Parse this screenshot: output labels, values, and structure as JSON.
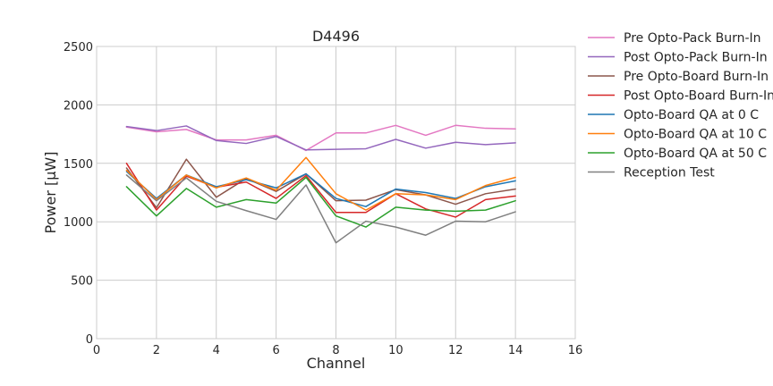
{
  "chart_data": {
    "type": "line",
    "title": "D4496",
    "xlabel": "Channel",
    "ylabel": "Power [μW]",
    "xlim": [
      0,
      16
    ],
    "ylim": [
      0,
      2500
    ],
    "xticks": [
      0,
      2,
      4,
      6,
      8,
      10,
      12,
      14,
      16
    ],
    "yticks": [
      0,
      500,
      1000,
      1500,
      2000,
      2500
    ],
    "grid": true,
    "legend_position": "outside-right",
    "x": [
      1,
      2,
      3,
      4,
      5,
      6,
      7,
      8,
      9,
      10,
      11,
      12,
      13,
      14
    ],
    "series": [
      {
        "name": "Pre Opto-Pack Burn-In",
        "color": "#e377c2",
        "values": [
          1810,
          1770,
          1790,
          1700,
          1700,
          1740,
          1610,
          1760,
          1760,
          1825,
          1740,
          1825,
          1800,
          1795
        ]
      },
      {
        "name": "Post Opto-Pack Burn-In",
        "color": "#9467bd",
        "values": [
          1815,
          1780,
          1820,
          1695,
          1670,
          1730,
          1615,
          1620,
          1625,
          1705,
          1630,
          1680,
          1660,
          1675
        ]
      },
      {
        "name": "Pre Opto-Board Burn-In",
        "color": "#8c564b",
        "values": [
          1460,
          1120,
          1535,
          1210,
          1370,
          1260,
          1410,
          1180,
          1185,
          1275,
          1230,
          1150,
          1240,
          1280
        ]
      },
      {
        "name": "Post Opto-Board Burn-In",
        "color": "#d62728",
        "values": [
          1500,
          1100,
          1390,
          1295,
          1340,
          1200,
          1395,
          1080,
          1080,
          1240,
          1110,
          1040,
          1190,
          1220
        ]
      },
      {
        "name": "Opto-Board QA at 0 C",
        "color": "#1f77b4",
        "values": [
          1430,
          1200,
          1400,
          1300,
          1360,
          1290,
          1410,
          1200,
          1130,
          1280,
          1250,
          1200,
          1300,
          1350
        ]
      },
      {
        "name": "Opto-Board QA at 10 C",
        "color": "#ff7f0e",
        "values": [
          1440,
          1190,
          1400,
          1290,
          1375,
          1270,
          1550,
          1240,
          1100,
          1240,
          1230,
          1190,
          1310,
          1380
        ]
      },
      {
        "name": "Opto-Board QA at 50 C",
        "color": "#2ca02c",
        "values": [
          1300,
          1050,
          1285,
          1125,
          1190,
          1160,
          1380,
          1050,
          955,
          1125,
          1100,
          1090,
          1100,
          1180
        ]
      },
      {
        "name": "Reception Test",
        "color": "#808080",
        "values": [
          1400,
          1180,
          1375,
          1175,
          1095,
          1020,
          1315,
          820,
          1005,
          955,
          885,
          1005,
          1000,
          1085
        ]
      }
    ]
  }
}
